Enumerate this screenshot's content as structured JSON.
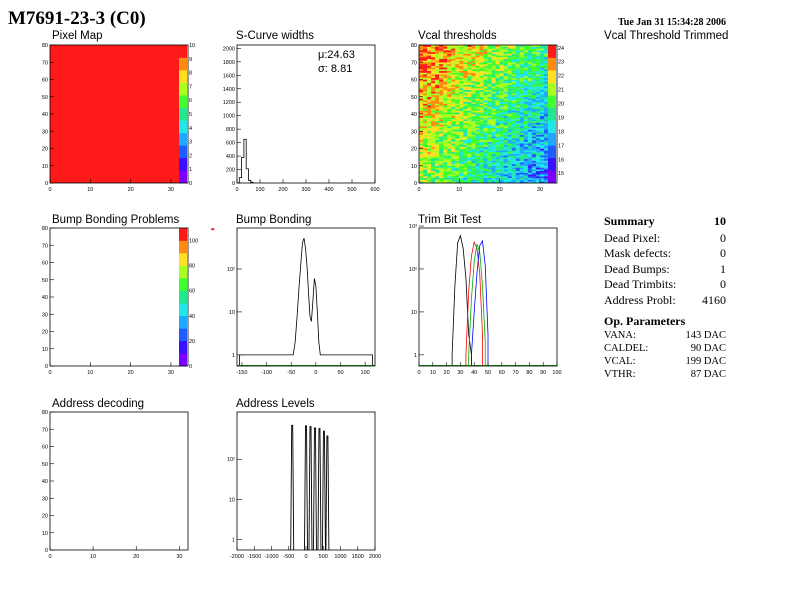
{
  "header": {
    "title": "M7691-23-3 (C0)",
    "datetime": "Tue Jan 31 15:34:28 2006"
  },
  "chart_data": [
    {
      "id": "pixel_map",
      "type": "heatmap",
      "title": "Pixel Map",
      "xlim": [
        0,
        32
      ],
      "ylim": [
        0,
        80
      ],
      "xticks": [
        "0",
        "10",
        "20",
        "30"
      ],
      "yticks": [
        "0",
        "10",
        "20",
        "30",
        "40",
        "50",
        "60",
        "70",
        "80"
      ],
      "zlim": [
        0,
        10
      ],
      "zticks": [
        "0",
        "1",
        "2",
        "3",
        "4",
        "5",
        "6",
        "7",
        "8",
        "9",
        "10"
      ],
      "uniform_value": 10,
      "fill_color": "#ff1a1a"
    },
    {
      "id": "scurve_widths",
      "type": "histogram",
      "title": "S-Curve widths",
      "xlim": [
        0,
        600
      ],
      "ylim": [
        0,
        2050
      ],
      "xticks": [
        "0",
        "100",
        "200",
        "300",
        "400",
        "500",
        "600"
      ],
      "yticks": [
        "0",
        "200",
        "400",
        "600",
        "800",
        "1000",
        "1200",
        "1400",
        "1600",
        "1800",
        "2000"
      ],
      "bin_width": 10,
      "bins": [
        {
          "x": 0,
          "y": 0
        },
        {
          "x": 10,
          "y": 80
        },
        {
          "x": 20,
          "y": 380
        },
        {
          "x": 30,
          "y": 650
        },
        {
          "x": 40,
          "y": 210
        },
        {
          "x": 50,
          "y": 40
        },
        {
          "x": 60,
          "y": 10
        }
      ],
      "stats": {
        "mu": "μ:24.63",
        "sigma": "σ: 8.81"
      }
    },
    {
      "id": "vcal_thresholds",
      "type": "heatmap",
      "title": "Vcal thresholds",
      "xlim": [
        0,
        32
      ],
      "ylim": [
        0,
        80
      ],
      "xticks": [
        "0",
        "10",
        "20",
        "30"
      ],
      "yticks": [
        "0",
        "10",
        "20",
        "30",
        "40",
        "50",
        "60",
        "70",
        "80"
      ],
      "zlim": [
        14.3,
        24.2
      ],
      "zticks": [
        "15",
        "16",
        "17",
        "18",
        "19",
        "20",
        "21",
        "22",
        "23",
        "24"
      ],
      "trend": "higher values at top-left, lower at bottom-right"
    },
    {
      "id": "vcal_threshold_trimmed",
      "type": "heatmap",
      "title": "Vcal Threshold Trimmed"
    },
    {
      "id": "bump_bonding_problems",
      "type": "heatmap",
      "title": "Bump Bonding Problems",
      "xlim": [
        0,
        32
      ],
      "ylim": [
        0,
        80
      ],
      "xticks": [
        "0",
        "10",
        "20",
        "30"
      ],
      "yticks": [
        "0",
        "10",
        "20",
        "30",
        "40",
        "50",
        "60",
        "70",
        "80"
      ],
      "zlim": [
        0,
        110
      ],
      "zticks": [
        "0",
        "20",
        "40",
        "60",
        "80",
        "100"
      ],
      "points": [
        {
          "x": 40,
          "y": 79,
          "value": 110
        }
      ]
    },
    {
      "id": "bump_bonding",
      "type": "histogram",
      "title": "Bump Bonding",
      "log_y": true,
      "xlim": [
        -160,
        120
      ],
      "ylim_log": [
        0.55,
        900
      ],
      "xticks": [
        "-150",
        "-100",
        "-50",
        "0",
        "50",
        "100"
      ],
      "yticks_log": [
        {
          "v": 1,
          "label": "1"
        },
        {
          "v": 10,
          "label": "10"
        },
        {
          "v": 100,
          "label": "10²"
        }
      ],
      "series": [
        {
          "name": "",
          "points": [
            {
              "x": -155,
              "y": 1
            },
            {
              "x": -150,
              "y": 1
            },
            {
              "x": -145,
              "y": 1
            },
            {
              "x": -46,
              "y": 1
            },
            {
              "x": -42,
              "y": 2
            },
            {
              "x": -38,
              "y": 8
            },
            {
              "x": -34,
              "y": 40
            },
            {
              "x": -30,
              "y": 160
            },
            {
              "x": -27,
              "y": 420
            },
            {
              "x": -24,
              "y": 520
            },
            {
              "x": -21,
              "y": 300
            },
            {
              "x": -18,
              "y": 120
            },
            {
              "x": -15,
              "y": 30
            },
            {
              "x": -12,
              "y": 8
            },
            {
              "x": -9,
              "y": 6
            },
            {
              "x": -6,
              "y": 18
            },
            {
              "x": -3,
              "y": 60
            },
            {
              "x": 0,
              "y": 40
            },
            {
              "x": 3,
              "y": 10
            },
            {
              "x": 6,
              "y": 2
            },
            {
              "x": 9,
              "y": 1
            },
            {
              "x": 115,
              "y": 1
            }
          ]
        }
      ]
    },
    {
      "id": "trim_bit_test",
      "type": "histogram",
      "title": "Trim Bit Test",
      "log_y": true,
      "xlim": [
        0,
        100
      ],
      "ylim_log": [
        0.55,
        900
      ],
      "xticks": [
        "0",
        "10",
        "20",
        "30",
        "40",
        "50",
        "60",
        "70",
        "80",
        "90",
        "100"
      ],
      "yticks_log": [
        {
          "v": 1,
          "label": "1"
        },
        {
          "v": 10,
          "label": "10"
        },
        {
          "v": 100,
          "label": "10²"
        },
        {
          "v": 1000,
          "label": "10³"
        }
      ],
      "series": [
        {
          "name": "",
          "color": "#000000",
          "points": [
            {
              "x": 24,
              "y": 1
            },
            {
              "x": 26,
              "y": 40
            },
            {
              "x": 28,
              "y": 400
            },
            {
              "x": 30,
              "y": 600
            },
            {
              "x": 32,
              "y": 300
            },
            {
              "x": 34,
              "y": 60
            },
            {
              "x": 36,
              "y": 3
            },
            {
              "x": 38,
              "y": 1
            }
          ]
        },
        {
          "name": "",
          "color": "#ff0000",
          "points": [
            {
              "x": 34,
              "y": 1
            },
            {
              "x": 36,
              "y": 30
            },
            {
              "x": 38,
              "y": 200
            },
            {
              "x": 40,
              "y": 420
            },
            {
              "x": 42,
              "y": 300
            },
            {
              "x": 44,
              "y": 80
            },
            {
              "x": 46,
              "y": 3
            }
          ]
        },
        {
          "name": "",
          "color": "#00aa00",
          "points": [
            {
              "x": 36,
              "y": 1
            },
            {
              "x": 38,
              "y": 20
            },
            {
              "x": 40,
              "y": 150
            },
            {
              "x": 42,
              "y": 380
            },
            {
              "x": 44,
              "y": 250
            },
            {
              "x": 46,
              "y": 40
            },
            {
              "x": 48,
              "y": 2
            }
          ]
        },
        {
          "name": "",
          "color": "#0000ff",
          "points": [
            {
              "x": 38,
              "y": 1
            },
            {
              "x": 40,
              "y": 10
            },
            {
              "x": 42,
              "y": 80
            },
            {
              "x": 44,
              "y": 350
            },
            {
              "x": 46,
              "y": 450
            },
            {
              "x": 48,
              "y": 120
            },
            {
              "x": 50,
              "y": 3
            }
          ]
        }
      ]
    },
    {
      "id": "address_decoding",
      "type": "heatmap",
      "title": "Address decoding",
      "xlim": [
        0,
        32
      ],
      "ylim": [
        0,
        80
      ],
      "xticks": [
        "0",
        "10",
        "20",
        "30"
      ],
      "yticks": [
        "0",
        "10",
        "20",
        "30",
        "40",
        "50",
        "60",
        "70",
        "80"
      ],
      "points": []
    },
    {
      "id": "address_levels",
      "type": "histogram",
      "title": "Address Levels",
      "log_y": true,
      "xlim": [
        -2000,
        2000
      ],
      "ylim_log": [
        0.55,
        1500
      ],
      "xticks": [
        "-2000",
        "-1500",
        "-1000",
        "-500",
        "0",
        "500",
        "1000",
        "1500",
        "2000"
      ],
      "yticks_log": [
        {
          "v": 1,
          "label": "1"
        },
        {
          "v": 10,
          "label": "10"
        },
        {
          "v": 100,
          "label": "10²"
        }
      ],
      "peaks": [
        {
          "x": -400,
          "y": 700
        },
        {
          "x": 0,
          "y": 680
        },
        {
          "x": 130,
          "y": 650
        },
        {
          "x": 260,
          "y": 600
        },
        {
          "x": 390,
          "y": 580
        },
        {
          "x": 520,
          "y": 500
        },
        {
          "x": 620,
          "y": 380
        }
      ]
    }
  ],
  "summary": {
    "label": "Summary",
    "value": "10",
    "rows": [
      {
        "label": "Dead Pixel:",
        "value": "0"
      },
      {
        "label": "Mask defects:",
        "value": "0"
      },
      {
        "label": "Dead Bumps:",
        "value": "1"
      },
      {
        "label": "Dead Trimbits:",
        "value": "0"
      },
      {
        "label": "Address Probl:",
        "value": "4160"
      }
    ]
  },
  "op_parameters": {
    "label": "Op. Parameters",
    "rows": [
      {
        "label": "VANA:",
        "value": "143 DAC"
      },
      {
        "label": "CALDEL:",
        "value": "90 DAC"
      },
      {
        "label": "VCAL:",
        "value": "199 DAC"
      },
      {
        "label": "VTHR:",
        "value": "87 DAC"
      }
    ]
  },
  "colors": {
    "palette": [
      "#7b00ff",
      "#3b10ff",
      "#1e5cff",
      "#1ea8ff",
      "#20e8e8",
      "#20e890",
      "#40ff30",
      "#a8ff20",
      "#ffe020",
      "#ff8a10",
      "#ff1a1a"
    ]
  }
}
